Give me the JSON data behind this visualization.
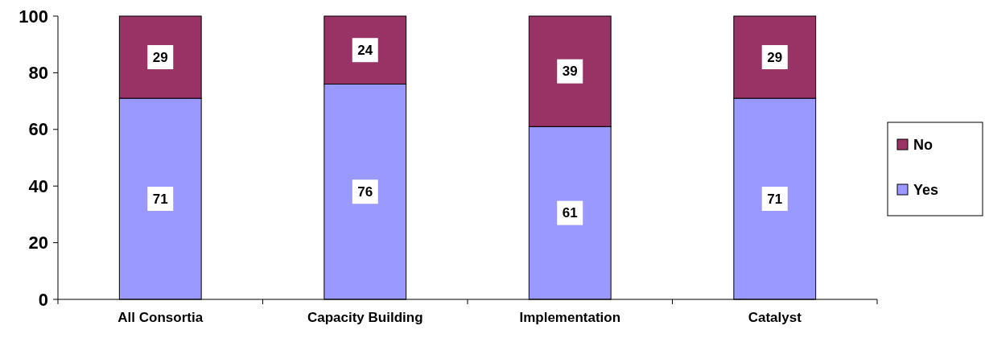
{
  "chart_data": {
    "type": "bar",
    "stacked": true,
    "categories": [
      "All Consortia",
      "Capacity Building",
      "Implementation",
      "Catalyst"
    ],
    "series": [
      {
        "name": "Yes",
        "color": "#9999ff",
        "values": [
          71,
          76,
          61,
          71
        ]
      },
      {
        "name": "No",
        "color": "#993366",
        "values": [
          29,
          24,
          39,
          29
        ]
      }
    ],
    "ylim": [
      0,
      100
    ],
    "yticks": [
      0,
      20,
      40,
      60,
      80,
      100
    ],
    "data_labels": true,
    "legend": "right",
    "grid": false
  }
}
